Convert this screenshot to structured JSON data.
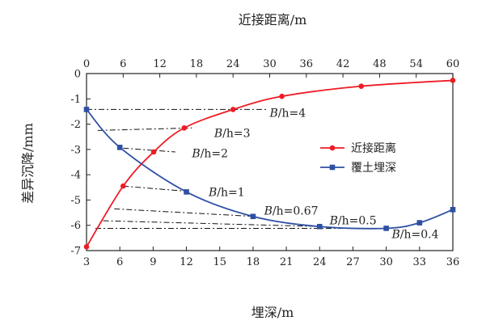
{
  "chart_data": {
    "type": "line",
    "top_axis": {
      "label": "近接距离/m",
      "min": 0,
      "max": 60,
      "ticks": [
        0,
        6,
        12,
        18,
        24,
        30,
        36,
        42,
        48,
        54,
        60
      ]
    },
    "bottom_axis": {
      "label": "埋深/m",
      "min": 3,
      "max": 36,
      "ticks": [
        3,
        6,
        9,
        12,
        15,
        18,
        21,
        24,
        27,
        30,
        33,
        36
      ]
    },
    "left_axis": {
      "label": "差异沉降/mm",
      "min": -7,
      "max": 0,
      "ticks": [
        0,
        -1,
        -2,
        -3,
        -4,
        -5,
        -6,
        -7
      ]
    },
    "grid": false,
    "legend_position": "center-right",
    "series": [
      {
        "name": "近接距离",
        "x_axis": "top",
        "color": "#ee1c25",
        "marker": "circle",
        "points": [
          {
            "x": 0,
            "y": -6.85
          },
          {
            "x": 6,
            "y": -4.45
          },
          {
            "x": 11,
            "y": -3.1
          },
          {
            "x": 16,
            "y": -2.15
          },
          {
            "x": 24,
            "y": -1.42
          },
          {
            "x": 32,
            "y": -0.9
          },
          {
            "x": 45,
            "y": -0.5
          },
          {
            "x": 60,
            "y": -0.27
          }
        ]
      },
      {
        "name": "覆土埋深",
        "x_axis": "bottom",
        "color": "#2e4fa3",
        "marker": "square",
        "points": [
          {
            "x": 3,
            "y": -1.42
          },
          {
            "x": 6,
            "y": -2.92
          },
          {
            "x": 12,
            "y": -4.68
          },
          {
            "x": 18,
            "y": -5.65
          },
          {
            "x": 24,
            "y": -6.05
          },
          {
            "x": 30,
            "y": -6.12
          },
          {
            "x": 33,
            "y": -5.9
          },
          {
            "x": 36,
            "y": -5.38
          }
        ]
      }
    ],
    "annotations": [
      {
        "label": "B/h=4",
        "italic_prefix": "B",
        "text_suffix": "/h=4",
        "line_from": {
          "x": 3,
          "y": -1.42
        },
        "line_to": {
          "x": 19.2,
          "y": -1.42
        },
        "text_at": {
          "x": 19.5,
          "y": -1.55
        }
      },
      {
        "label": "B/h=3",
        "italic_prefix": "B",
        "text_suffix": "/h=3",
        "line_from": {
          "x": 4,
          "y": -2.25
        },
        "line_to": {
          "x": 12.5,
          "y": -2.15
        },
        "text_at": {
          "x": 14.5,
          "y": -2.35
        }
      },
      {
        "label": "B/h=2",
        "italic_prefix": "B",
        "text_suffix": "/h=2",
        "line_from": {
          "x": 6.3,
          "y": -2.95
        },
        "line_to": {
          "x": 11.0,
          "y": -3.1
        },
        "text_at": {
          "x": 12.5,
          "y": -3.15
        }
      },
      {
        "label": "B/h=1",
        "italic_prefix": "B",
        "text_suffix": "/h=1",
        "line_from": {
          "x": 6.3,
          "y": -4.45
        },
        "line_to": {
          "x": 11.9,
          "y": -4.65
        },
        "text_at": {
          "x": 14.0,
          "y": -4.68
        }
      },
      {
        "label": "B/h=0.67",
        "italic_prefix": "B",
        "text_suffix": "/h=0.67",
        "line_from": {
          "x": 5.5,
          "y": -5.35
        },
        "line_to": {
          "x": 18.2,
          "y": -5.65
        },
        "text_at": {
          "x": 19.0,
          "y": -5.42
        }
      },
      {
        "label": "B/h=0.5",
        "italic_prefix": "B",
        "text_suffix": "/h=0.5",
        "line_from": {
          "x": 4.5,
          "y": -5.82
        },
        "line_to": {
          "x": 24.2,
          "y": -6.05
        },
        "text_at": {
          "x": 24.9,
          "y": -5.8
        }
      },
      {
        "label": "B/h=0.4",
        "italic_prefix": "B",
        "text_suffix": "/h=0.4",
        "line_from": {
          "x": 3.8,
          "y": -6.12
        },
        "line_to": {
          "x": 30.2,
          "y": -6.12
        },
        "text_at": {
          "x": 30.5,
          "y": -6.35
        }
      }
    ]
  }
}
